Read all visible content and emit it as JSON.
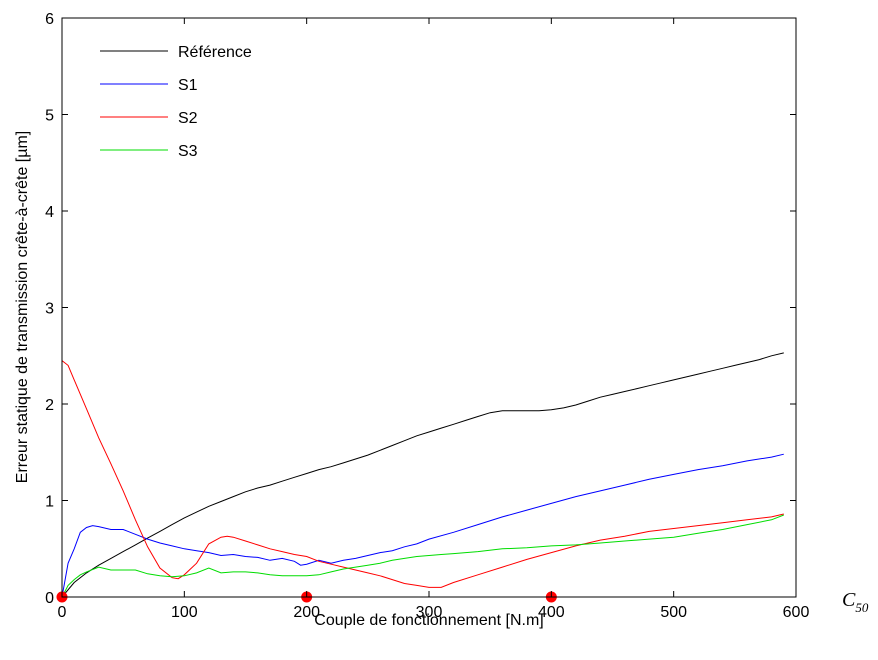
{
  "chart_data": {
    "type": "line",
    "xlabel": "Couple de fonctionnement [N.m]",
    "ylabel": "Erreur statique de transmission crête-à-crête [µm]",
    "xlim": [
      0,
      600
    ],
    "ylim": [
      0,
      6
    ],
    "xticks": [
      "0",
      "100",
      "200",
      "300",
      "400",
      "500",
      "600"
    ],
    "yticks": [
      "0",
      "1",
      "2",
      "3",
      "4",
      "5",
      "6"
    ],
    "grid": false,
    "legend_position": "top-left",
    "annotation": {
      "main": "C",
      "sub": "50"
    },
    "markers": {
      "color": "#ff0000",
      "x": [
        0,
        200,
        400
      ],
      "y": [
        0,
        0,
        0
      ]
    },
    "series": [
      {
        "name": "Référence",
        "color": "#000000",
        "x": [
          0,
          10,
          20,
          30,
          40,
          50,
          60,
          70,
          80,
          90,
          100,
          110,
          120,
          130,
          140,
          150,
          160,
          170,
          180,
          190,
          200,
          210,
          220,
          230,
          240,
          250,
          260,
          270,
          280,
          290,
          300,
          310,
          320,
          330,
          340,
          350,
          360,
          370,
          380,
          390,
          400,
          410,
          420,
          430,
          440,
          450,
          460,
          470,
          480,
          490,
          500,
          510,
          520,
          530,
          540,
          550,
          560,
          570,
          580,
          590
        ],
        "values": [
          0,
          0.15,
          0.25,
          0.33,
          0.4,
          0.47,
          0.54,
          0.61,
          0.68,
          0.75,
          0.82,
          0.88,
          0.94,
          0.99,
          1.04,
          1.09,
          1.13,
          1.16,
          1.2,
          1.24,
          1.28,
          1.32,
          1.35,
          1.39,
          1.43,
          1.47,
          1.52,
          1.57,
          1.62,
          1.67,
          1.71,
          1.75,
          1.79,
          1.83,
          1.87,
          1.91,
          1.93,
          1.93,
          1.93,
          1.93,
          1.94,
          1.96,
          1.99,
          2.03,
          2.07,
          2.1,
          2.13,
          2.16,
          2.19,
          2.22,
          2.25,
          2.28,
          2.31,
          2.34,
          2.37,
          2.4,
          2.43,
          2.46,
          2.5,
          2.53
        ]
      },
      {
        "name": "S1",
        "color": "#0000ff",
        "x": [
          0,
          5,
          10,
          15,
          20,
          25,
          30,
          40,
          50,
          60,
          70,
          80,
          90,
          100,
          110,
          120,
          130,
          140,
          150,
          160,
          170,
          180,
          190,
          195,
          200,
          210,
          220,
          230,
          240,
          250,
          260,
          270,
          280,
          290,
          300,
          320,
          340,
          360,
          380,
          400,
          420,
          440,
          460,
          480,
          500,
          520,
          540,
          560,
          580,
          590
        ],
        "values": [
          0,
          0.35,
          0.5,
          0.67,
          0.72,
          0.74,
          0.73,
          0.7,
          0.7,
          0.65,
          0.6,
          0.56,
          0.53,
          0.5,
          0.48,
          0.46,
          0.43,
          0.44,
          0.42,
          0.41,
          0.38,
          0.4,
          0.37,
          0.33,
          0.34,
          0.38,
          0.35,
          0.38,
          0.4,
          0.43,
          0.46,
          0.48,
          0.52,
          0.55,
          0.6,
          0.67,
          0.75,
          0.83,
          0.9,
          0.97,
          1.04,
          1.1,
          1.16,
          1.22,
          1.27,
          1.32,
          1.36,
          1.41,
          1.45,
          1.48
        ]
      },
      {
        "name": "S2",
        "color": "#ff0000",
        "x": [
          0,
          5,
          10,
          20,
          30,
          40,
          50,
          60,
          70,
          80,
          90,
          95,
          100,
          110,
          120,
          130,
          135,
          140,
          150,
          160,
          170,
          180,
          190,
          200,
          210,
          220,
          230,
          240,
          250,
          260,
          270,
          280,
          290,
          300,
          310,
          320,
          340,
          360,
          380,
          400,
          420,
          440,
          460,
          480,
          500,
          520,
          540,
          560,
          580,
          590
        ],
        "values": [
          2.45,
          2.4,
          2.25,
          1.95,
          1.65,
          1.38,
          1.1,
          0.8,
          0.52,
          0.3,
          0.2,
          0.19,
          0.23,
          0.35,
          0.55,
          0.62,
          0.63,
          0.62,
          0.58,
          0.54,
          0.5,
          0.47,
          0.44,
          0.42,
          0.37,
          0.34,
          0.31,
          0.28,
          0.25,
          0.22,
          0.18,
          0.14,
          0.12,
          0.1,
          0.1,
          0.15,
          0.23,
          0.31,
          0.39,
          0.46,
          0.53,
          0.59,
          0.63,
          0.68,
          0.71,
          0.74,
          0.77,
          0.8,
          0.83,
          0.86
        ]
      },
      {
        "name": "S3",
        "color": "#00dd00",
        "x": [
          0,
          5,
          10,
          15,
          20,
          30,
          40,
          50,
          60,
          70,
          80,
          90,
          100,
          110,
          120,
          130,
          140,
          150,
          160,
          170,
          180,
          190,
          200,
          210,
          220,
          230,
          240,
          250,
          260,
          270,
          280,
          290,
          300,
          310,
          320,
          340,
          360,
          380,
          400,
          420,
          440,
          460,
          480,
          500,
          520,
          540,
          560,
          580,
          590
        ],
        "values": [
          0,
          0.12,
          0.18,
          0.23,
          0.26,
          0.31,
          0.28,
          0.28,
          0.28,
          0.24,
          0.22,
          0.21,
          0.22,
          0.25,
          0.3,
          0.25,
          0.26,
          0.26,
          0.25,
          0.23,
          0.22,
          0.22,
          0.22,
          0.23,
          0.26,
          0.29,
          0.31,
          0.33,
          0.35,
          0.38,
          0.4,
          0.42,
          0.43,
          0.44,
          0.45,
          0.47,
          0.5,
          0.51,
          0.53,
          0.54,
          0.56,
          0.58,
          0.6,
          0.62,
          0.66,
          0.7,
          0.75,
          0.8,
          0.85
        ]
      }
    ]
  }
}
